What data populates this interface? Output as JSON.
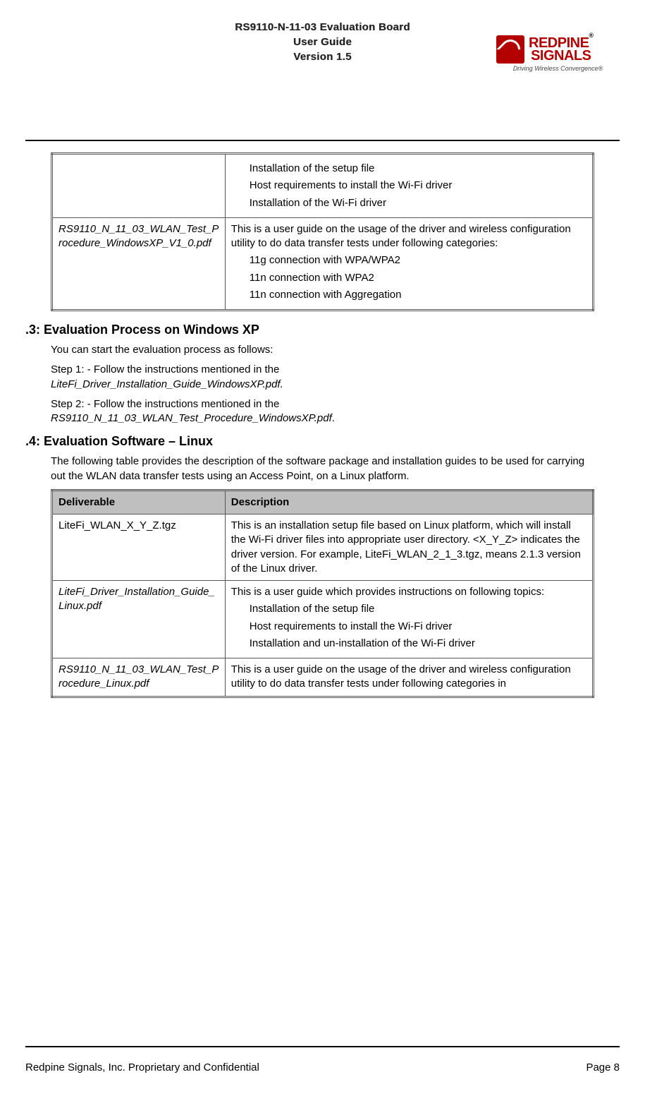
{
  "header": {
    "line1": "RS9110-N-11-03 Evaluation Board",
    "line2": "User Guide",
    "line3": "Version 1.5",
    "logo_top": "REDPINE",
    "logo_bottom": "SIGNALS",
    "logo_tag": "Driving Wireless Convergence®"
  },
  "table1": {
    "rows": [
      {
        "left": "",
        "right_intro": "",
        "right_items": [
          "Installation of the setup file",
          "Host requirements to install the Wi-Fi driver",
          "Installation of the Wi-Fi driver"
        ]
      },
      {
        "left": "RS9110_N_11_03_WLAN_Test_Procedure_WindowsXP_V1_0.pdf",
        "left_italic": true,
        "right_intro": "This is a user guide on the usage of the driver and wireless configuration utility to do data transfer tests under following categories:",
        "right_items": [
          "11g connection with WPA/WPA2",
          "11n connection with WPA2",
          "11n connection with Aggregation"
        ]
      }
    ]
  },
  "section3": {
    "heading": ".3: Evaluation Process on Windows XP",
    "p1": "You can start the evaluation process as follows:",
    "p2a": "Step 1: - Follow the instructions mentioned in the ",
    "p2b": "LiteFi_Driver_Installation_Guide_WindowsXP.pdf.",
    "p3a": "Step 2: - Follow the instructions mentioned in the ",
    "p3b": "RS9110_N_11_03_WLAN_Test_Procedure_WindowsXP.pdf",
    "p3c": "."
  },
  "section4": {
    "heading": ".4: Evaluation Software – Linux",
    "p1": "The following table provides the description of the software package and installation guides to be used for carrying out the WLAN data transfer tests using an Access Point, on a Linux platform."
  },
  "table2": {
    "header_left": "Deliverable",
    "header_right": "Description",
    "rows": [
      {
        "left": "LiteFi_WLAN_X_Y_Z.tgz",
        "left_italic": false,
        "right_intro": "This is an installation setup file based on Linux platform, which will install the Wi-Fi driver files into appropriate user directory.   <X_Y_Z> indicates the driver version. For example, LiteFi_WLAN_2_1_3.tgz, means 2.1.3 version of the Linux driver.",
        "right_items": []
      },
      {
        "left": "LiteFi_Driver_Installation_Guide_Linux.pdf",
        "left_italic": true,
        "right_intro": "This is a user guide which provides instructions on following topics:",
        "right_items": [
          "Installation of the setup file",
          "Host requirements to install the Wi-Fi driver",
          "Installation and un-installation of the Wi-Fi driver"
        ]
      },
      {
        "left": "RS9110_N_11_03_WLAN_Test_Procedure_Linux.pdf",
        "left_italic": true,
        "right_intro": "This is a user guide on the usage of the driver and wireless configuration utility to do data transfer tests under following categories in",
        "right_items": []
      }
    ]
  },
  "footer": {
    "left": "Redpine Signals, Inc. Proprietary and Confidential",
    "right": "Page 8"
  }
}
